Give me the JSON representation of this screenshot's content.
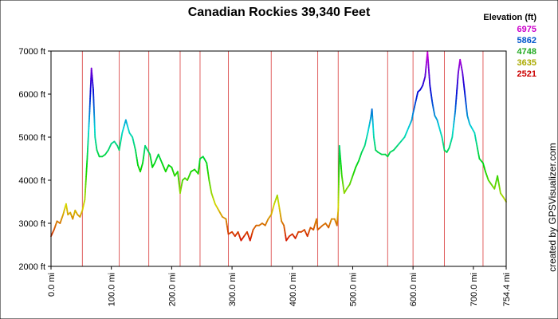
{
  "chart_data": {
    "type": "line",
    "title": "Canadian Rockies 39,340 Feet",
    "xlabel": "",
    "ylabel": "",
    "xlim": [
      0,
      754.4
    ],
    "ylim": [
      2000,
      7000
    ],
    "y_ticks": [
      "2000 ft",
      "3000 ft",
      "4000 ft",
      "5000 ft",
      "6000 ft",
      "7000 ft"
    ],
    "y_tick_values": [
      2000,
      3000,
      4000,
      5000,
      6000,
      7000
    ],
    "x_ticks": [
      "0.0 mi",
      "100.0 mi",
      "200.0 mi",
      "300.0 mi",
      "400.0 mi",
      "500.0 mi",
      "600.0 mi",
      "700.0 mi",
      "754.4 mi"
    ],
    "x_tick_values": [
      0,
      100,
      200,
      300,
      400,
      500,
      600,
      700,
      754.4
    ],
    "grid": false,
    "legend": {
      "title": "Elevation (ft)",
      "placement": "top-right",
      "entries": [
        {
          "label": "6975",
          "color": "#cc00cc"
        },
        {
          "label": "5862",
          "color": "#0055cc"
        },
        {
          "label": "4748",
          "color": "#22aa22"
        },
        {
          "label": "3635",
          "color": "#aaaa00"
        },
        {
          "label": "2521",
          "color": "#cc0000"
        }
      ]
    },
    "segment_markers": [
      52,
      113,
      162,
      214,
      247,
      294,
      365,
      442,
      476,
      558,
      600,
      652,
      716
    ],
    "series": [
      {
        "x": [
          0,
          5,
          10,
          15,
          20,
          25,
          28,
          32,
          36,
          40,
          44,
          48,
          52,
          56,
          60,
          64,
          67,
          70,
          73,
          76,
          80,
          85,
          90,
          95,
          100,
          105,
          110,
          113,
          118,
          124,
          130,
          135,
          140,
          144,
          148,
          152,
          156,
          160,
          164,
          168,
          172,
          178,
          184,
          190,
          195,
          200,
          205,
          210,
          214,
          218,
          222,
          226,
          232,
          238,
          244,
          247,
          252,
          258,
          262,
          266,
          272,
          278,
          284,
          290,
          294,
          300,
          305,
          310,
          315,
          320,
          325,
          330,
          335,
          340,
          345,
          350,
          355,
          360,
          365,
          370,
          375,
          378,
          382,
          386,
          390,
          395,
          400,
          405,
          410,
          415,
          420,
          425,
          430,
          435,
          440,
          442,
          446,
          450,
          455,
          460,
          465,
          470,
          474,
          476,
          478,
          482,
          486,
          490,
          495,
          500,
          505,
          510,
          515,
          520,
          525,
          530,
          532,
          535,
          538,
          542,
          548,
          554,
          558,
          562,
          568,
          574,
          580,
          586,
          592,
          598,
          600,
          604,
          608,
          612,
          616,
          620,
          624,
          628,
          632,
          636,
          640,
          644,
          648,
          652,
          656,
          660,
          665,
          670,
          675,
          678,
          682,
          686,
          690,
          694,
          698,
          702,
          706,
          710,
          716,
          720,
          725,
          730,
          735,
          740,
          745,
          750,
          754.4
        ],
        "y": [
          2700,
          2850,
          3050,
          3000,
          3200,
          3450,
          3200,
          3250,
          3100,
          3300,
          3200,
          3150,
          3300,
          3550,
          4500,
          5600,
          6600,
          6100,
          5000,
          4700,
          4550,
          4550,
          4600,
          4700,
          4850,
          4900,
          4800,
          4700,
          5100,
          5400,
          5100,
          5000,
          4700,
          4350,
          4200,
          4400,
          4800,
          4700,
          4600,
          4300,
          4400,
          4600,
          4400,
          4200,
          4350,
          4300,
          4100,
          4200,
          3700,
          4000,
          4050,
          4000,
          4200,
          4250,
          4150,
          4500,
          4550,
          4400,
          4000,
          3700,
          3450,
          3300,
          3150,
          3100,
          2750,
          2800,
          2700,
          2800,
          2600,
          2700,
          2800,
          2600,
          2850,
          2950,
          2950,
          3000,
          2950,
          3100,
          3200,
          3450,
          3650,
          3400,
          3050,
          2950,
          2600,
          2700,
          2750,
          2650,
          2800,
          2800,
          2850,
          2700,
          2900,
          2850,
          3100,
          2850,
          2900,
          2950,
          3000,
          2900,
          3100,
          3100,
          2950,
          3300,
          4800,
          4100,
          3700,
          3800,
          3900,
          4100,
          4300,
          4450,
          4650,
          4800,
          5100,
          5450,
          5650,
          5000,
          4700,
          4650,
          4600,
          4600,
          4550,
          4650,
          4700,
          4800,
          4900,
          5000,
          5200,
          5400,
          5550,
          5800,
          6050,
          6100,
          6200,
          6400,
          6975,
          6200,
          5800,
          5500,
          5400,
          5200,
          5000,
          4700,
          4650,
          4750,
          5000,
          5600,
          6500,
          6800,
          6500,
          6000,
          5500,
          5300,
          5200,
          5100,
          4800,
          4500,
          4400,
          4200,
          4000,
          3900,
          3800,
          4100,
          3700,
          3600,
          3500
        ]
      }
    ]
  },
  "credit": "created by GPSVisualizer.com"
}
